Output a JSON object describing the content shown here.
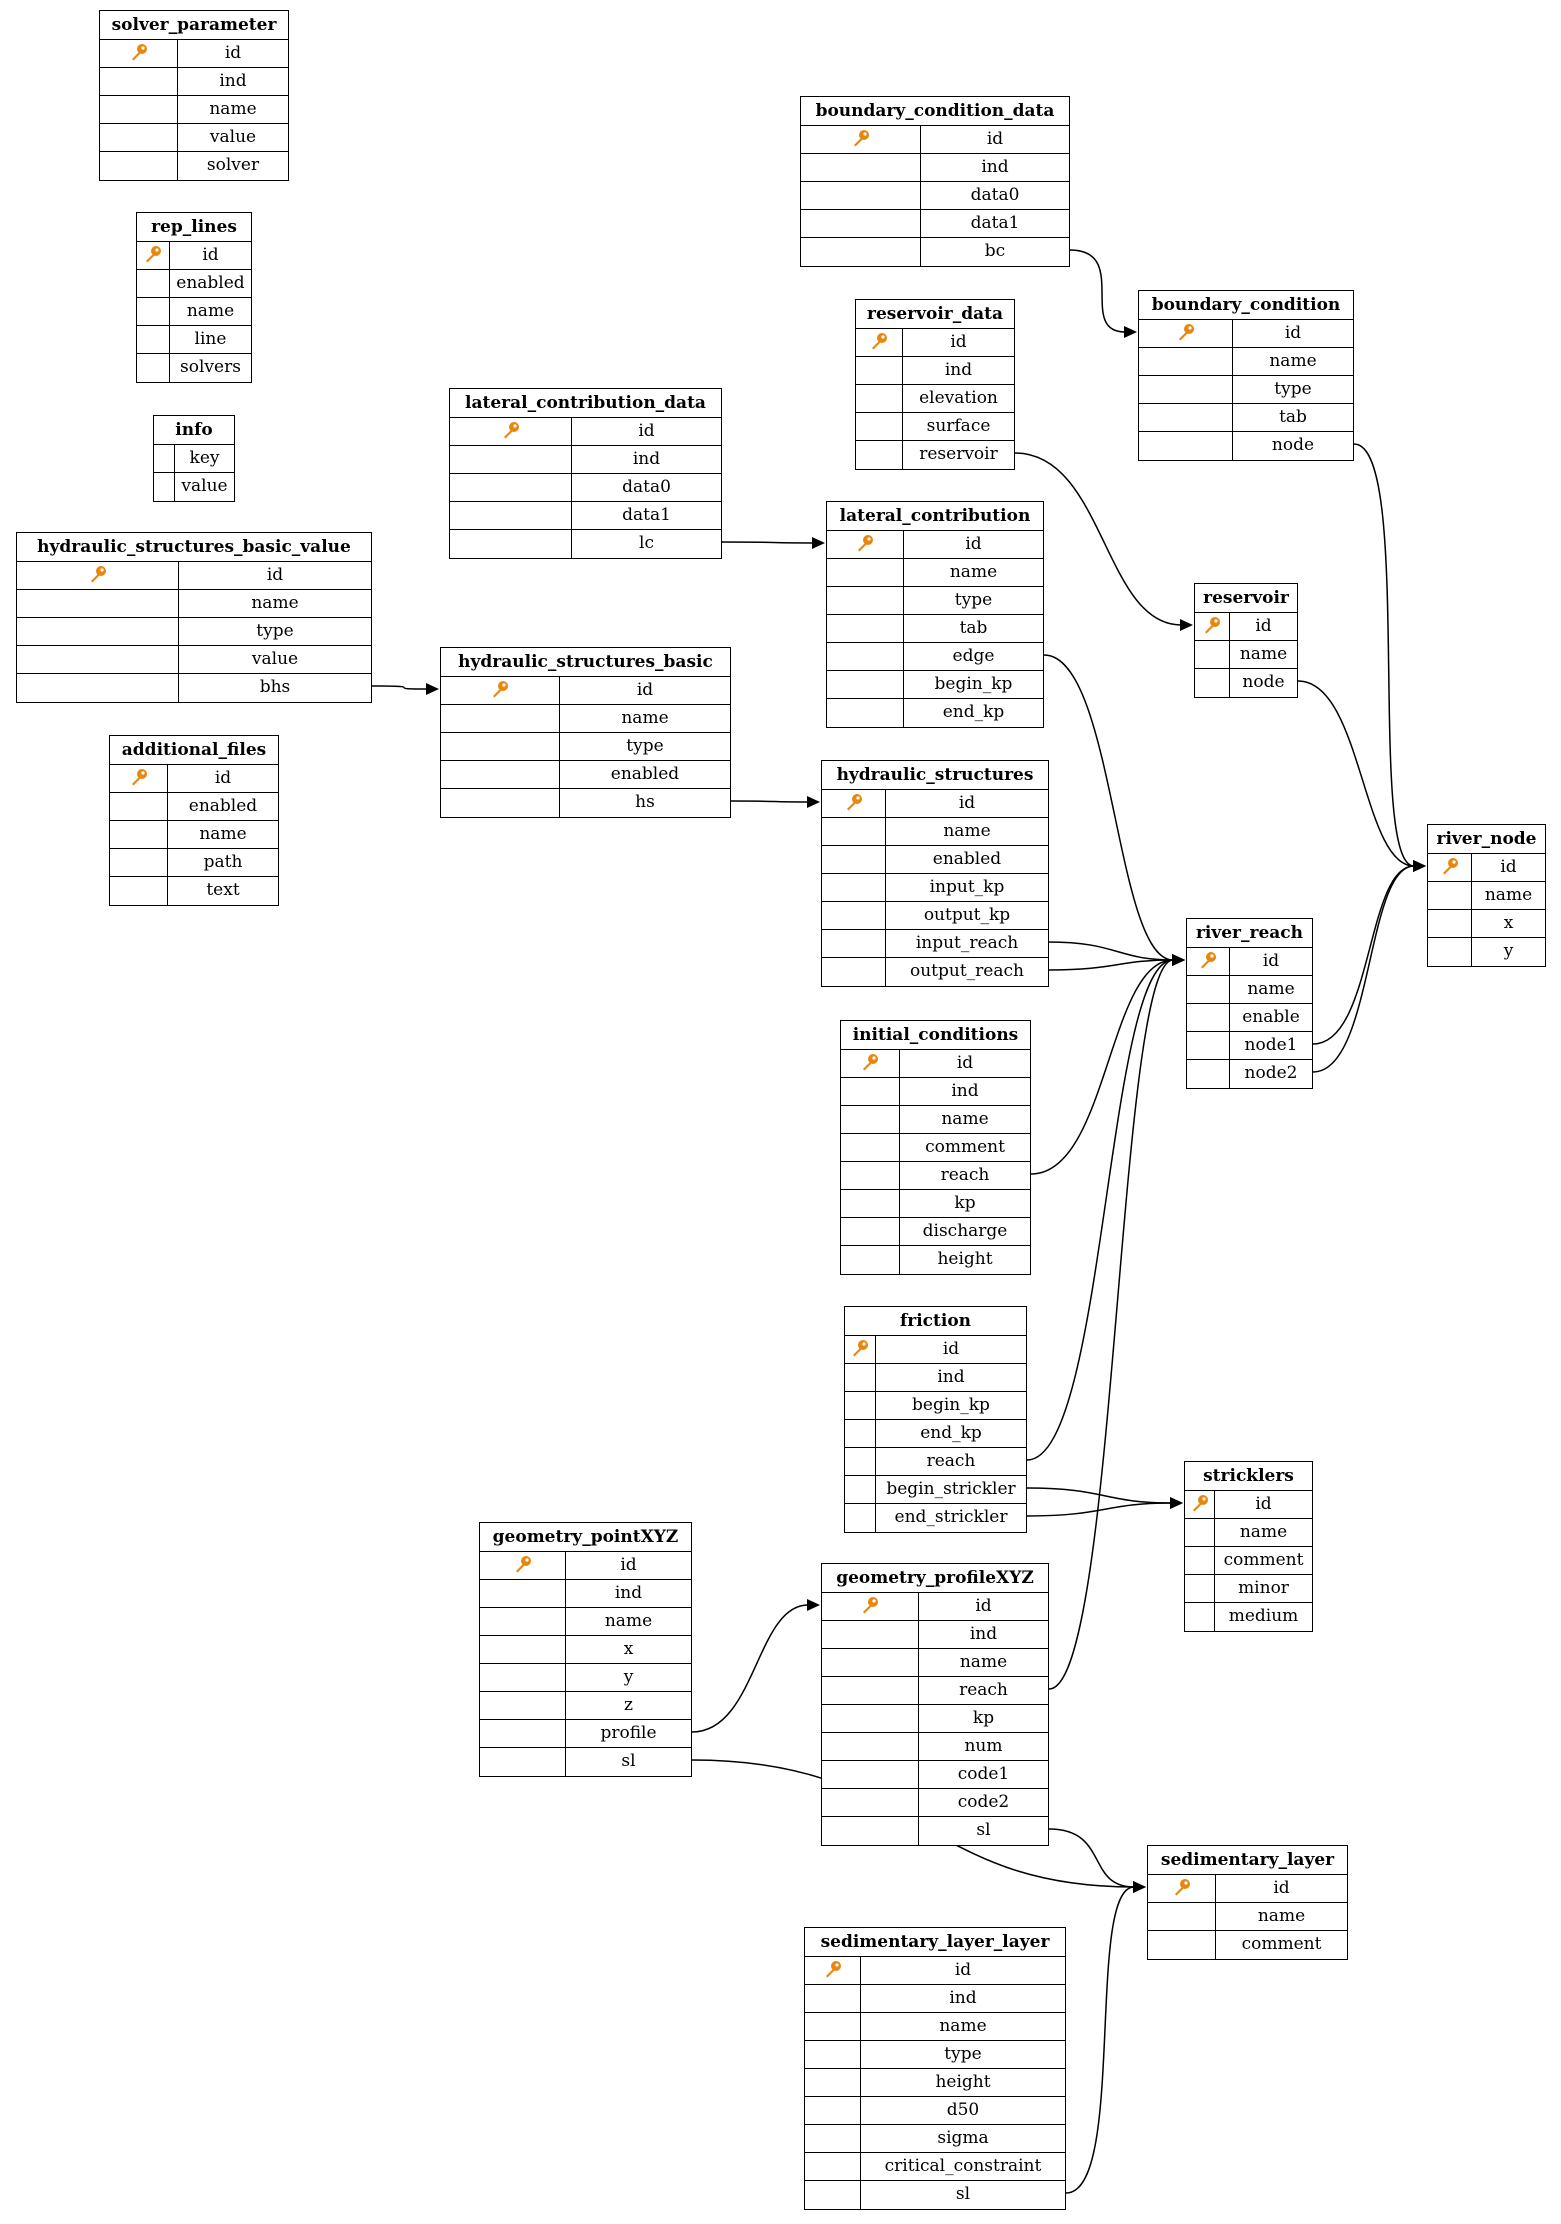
{
  "diagram": {
    "key_icon": "key-icon",
    "key_color": "#e8870e",
    "tables": [
      {
        "name": "solver_parameter",
        "fields": [
          "id",
          "ind",
          "name",
          "value",
          "solver"
        ]
      },
      {
        "name": "rep_lines",
        "fields": [
          "id",
          "enabled",
          "name",
          "line",
          "solvers"
        ]
      },
      {
        "name": "info",
        "fields": [
          "key",
          "value"
        ],
        "no_key": true
      },
      {
        "name": "hydraulic_structures_basic_value",
        "fields": [
          "id",
          "name",
          "type",
          "value",
          "bhs"
        ]
      },
      {
        "name": "additional_files",
        "fields": [
          "id",
          "enabled",
          "name",
          "path",
          "text"
        ]
      },
      {
        "name": "boundary_condition_data",
        "fields": [
          "id",
          "ind",
          "data0",
          "data1",
          "bc"
        ]
      },
      {
        "name": "boundary_condition",
        "fields": [
          "id",
          "name",
          "type",
          "tab",
          "node"
        ]
      },
      {
        "name": "reservoir_data",
        "fields": [
          "id",
          "ind",
          "elevation",
          "surface",
          "reservoir"
        ]
      },
      {
        "name": "lateral_contribution_data",
        "fields": [
          "id",
          "ind",
          "data0",
          "data1",
          "lc"
        ]
      },
      {
        "name": "lateral_contribution",
        "fields": [
          "id",
          "name",
          "type",
          "tab",
          "edge",
          "begin_kp",
          "end_kp"
        ]
      },
      {
        "name": "reservoir",
        "fields": [
          "id",
          "name",
          "node"
        ]
      },
      {
        "name": "hydraulic_structures_basic",
        "fields": [
          "id",
          "name",
          "type",
          "enabled",
          "hs"
        ]
      },
      {
        "name": "hydraulic_structures",
        "fields": [
          "id",
          "name",
          "enabled",
          "input_kp",
          "output_kp",
          "input_reach",
          "output_reach"
        ]
      },
      {
        "name": "river_node",
        "fields": [
          "id",
          "name",
          "x",
          "y"
        ]
      },
      {
        "name": "river_reach",
        "fields": [
          "id",
          "name",
          "enable",
          "node1",
          "node2"
        ]
      },
      {
        "name": "initial_conditions",
        "fields": [
          "id",
          "ind",
          "name",
          "comment",
          "reach",
          "kp",
          "discharge",
          "height"
        ]
      },
      {
        "name": "friction",
        "fields": [
          "id",
          "ind",
          "begin_kp",
          "end_kp",
          "reach",
          "begin_strickler",
          "end_strickler"
        ]
      },
      {
        "name": "stricklers",
        "fields": [
          "id",
          "name",
          "comment",
          "minor",
          "medium"
        ]
      },
      {
        "name": "geometry_pointXYZ",
        "fields": [
          "id",
          "ind",
          "name",
          "x",
          "y",
          "z",
          "profile",
          "sl"
        ]
      },
      {
        "name": "geometry_profileXYZ",
        "fields": [
          "id",
          "ind",
          "name",
          "reach",
          "kp",
          "num",
          "code1",
          "code2",
          "sl"
        ]
      },
      {
        "name": "sedimentary_layer",
        "fields": [
          "id",
          "name",
          "comment"
        ]
      },
      {
        "name": "sedimentary_layer_layer",
        "fields": [
          "id",
          "ind",
          "name",
          "type",
          "height",
          "d50",
          "sigma",
          "critical_constraint",
          "sl"
        ]
      }
    ],
    "edges": [
      {
        "from": "boundary_condition_data",
        "field": "bc",
        "to": "boundary_condition"
      },
      {
        "from": "boundary_condition",
        "field": "node",
        "to": "river_node"
      },
      {
        "from": "reservoir_data",
        "field": "reservoir",
        "to": "reservoir"
      },
      {
        "from": "reservoir",
        "field": "node",
        "to": "river_node"
      },
      {
        "from": "lateral_contribution_data",
        "field": "lc",
        "to": "lateral_contribution"
      },
      {
        "from": "lateral_contribution",
        "field": "edge",
        "to": "river_reach"
      },
      {
        "from": "hydraulic_structures_basic_value",
        "field": "bhs",
        "to": "hydraulic_structures_basic"
      },
      {
        "from": "hydraulic_structures_basic",
        "field": "hs",
        "to": "hydraulic_structures"
      },
      {
        "from": "hydraulic_structures",
        "field": "input_reach",
        "to": "river_reach"
      },
      {
        "from": "hydraulic_structures",
        "field": "output_reach",
        "to": "river_reach"
      },
      {
        "from": "river_reach",
        "field": "node1",
        "to": "river_node"
      },
      {
        "from": "river_reach",
        "field": "node2",
        "to": "river_node"
      },
      {
        "from": "initial_conditions",
        "field": "reach",
        "to": "river_reach"
      },
      {
        "from": "friction",
        "field": "reach",
        "to": "river_reach"
      },
      {
        "from": "friction",
        "field": "begin_strickler",
        "to": "stricklers"
      },
      {
        "from": "friction",
        "field": "end_strickler",
        "to": "stricklers"
      },
      {
        "from": "geometry_pointXYZ",
        "field": "profile",
        "to": "geometry_profileXYZ"
      },
      {
        "from": "geometry_pointXYZ",
        "field": "sl",
        "to": "sedimentary_layer"
      },
      {
        "from": "geometry_profileXYZ",
        "field": "reach",
        "to": "river_reach"
      },
      {
        "from": "geometry_profileXYZ",
        "field": "sl",
        "to": "sedimentary_layer"
      },
      {
        "from": "sedimentary_layer_layer",
        "field": "sl",
        "to": "sedimentary_layer"
      }
    ]
  }
}
